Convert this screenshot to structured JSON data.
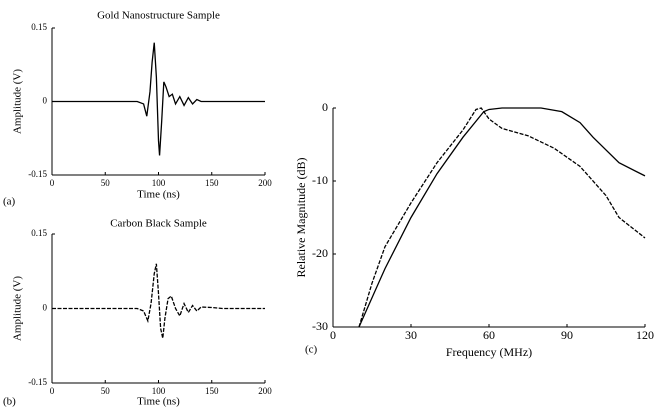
{
  "chart_data": [
    {
      "type": "line",
      "label": "(a)",
      "title": "Gold Nanostructure Sample",
      "xlabel": "Time (ns)",
      "ylabel": "Amplitude (V)",
      "xlim": [
        0,
        200
      ],
      "xticks": [
        0,
        50,
        100,
        150,
        200
      ],
      "ylim": [
        -0.15,
        0.15
      ],
      "yticks": [
        0.15,
        0,
        -0.15
      ],
      "series": [
        {
          "color": "#000000",
          "x": [
            0,
            80,
            86,
            89,
            92,
            94,
            96,
            98,
            100,
            101,
            103,
            105,
            107,
            110,
            113,
            116,
            120,
            124,
            128,
            132,
            136,
            140,
            150,
            200
          ],
          "values": [
            0,
            0,
            -0.005,
            -0.03,
            0.02,
            0.08,
            0.12,
            0.05,
            -0.08,
            -0.11,
            -0.04,
            0.04,
            0.03,
            0.01,
            0.015,
            -0.005,
            0.01,
            -0.008,
            0.008,
            -0.005,
            0.004,
            0,
            0,
            0
          ]
        }
      ]
    },
    {
      "type": "line",
      "label": "(b)",
      "title": "Carbon Black Sample",
      "xlabel": "Time (ns)",
      "ylabel": "Amplitude (V)",
      "xlim": [
        0,
        200
      ],
      "xticks": [
        0,
        50,
        100,
        150,
        200
      ],
      "ylim": [
        -0.15,
        0.15
      ],
      "yticks": [
        0.15,
        0,
        -0.15
      ],
      "series": [
        {
          "color": "#000000",
          "dash": true,
          "x": [
            0,
            80,
            86,
            90,
            93,
            96,
            98,
            100,
            102,
            104,
            106,
            109,
            112,
            116,
            120,
            124,
            128,
            132,
            136,
            140,
            150,
            160,
            200
          ],
          "values": [
            0,
            0,
            -0.005,
            -0.025,
            0.01,
            0.07,
            0.09,
            0.03,
            -0.04,
            -0.06,
            -0.02,
            0.02,
            0.025,
            0,
            -0.015,
            0.01,
            -0.008,
            0.006,
            -0.005,
            0.003,
            0.002,
            0,
            0
          ]
        }
      ]
    },
    {
      "type": "line",
      "label": "(c)",
      "xlabel": "Frequency (MHz)",
      "ylabel": "Relative Magnitude (dB)",
      "xlim": [
        0,
        120
      ],
      "xticks": [
        0,
        30,
        60,
        90,
        120
      ],
      "ylim": [
        -30,
        0
      ],
      "yticks": [
        0,
        -10,
        -20,
        -30
      ],
      "series": [
        {
          "color": "#000000",
          "x": [
            10,
            20,
            30,
            40,
            50,
            58,
            60,
            65,
            80,
            88,
            95,
            100,
            110,
            120
          ],
          "values": [
            -30,
            -22,
            -15,
            -9,
            -4,
            -0.5,
            -0.2,
            0,
            0,
            -0.5,
            -2,
            -4,
            -7.5,
            -9.3
          ]
        },
        {
          "color": "#000000",
          "dash": true,
          "x": [
            10,
            15,
            20,
            30,
            40,
            50,
            55,
            57,
            60,
            65,
            75,
            85,
            95,
            105,
            110,
            120
          ],
          "values": [
            -30,
            -24,
            -19,
            -13,
            -7.5,
            -3,
            -0.2,
            0,
            -1.5,
            -2.8,
            -3.8,
            -5.5,
            -8,
            -12,
            -15,
            -17.8
          ]
        }
      ]
    }
  ]
}
